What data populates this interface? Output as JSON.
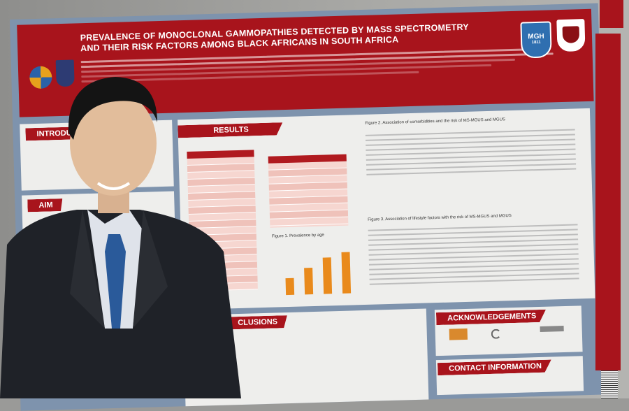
{
  "poster": {
    "title_line1": "PREVALENCE OF MONOCLONAL GAMMOPATHIES DETECTED BY MASS SPECTROMETRY",
    "title_line2": "AND THEIR RISK FACTORS AMONG BLACK AFRICANS IN SOUTH AFRICA",
    "logo_mgh": "MGH",
    "logo_mgh_year": "1811",
    "sections": {
      "introduction": "INTRODU",
      "aim": "AIM",
      "results": "RESULTS",
      "conclusions": "CLUSIONS",
      "acknowledgements": "ACKNOWLEDGEMENTS",
      "contact": "CONTACT INFORMATION"
    },
    "figure2_title": "Figure 2. Association of comorbidities and the risk of MS-MGUS and MGUS",
    "figure3_title": "Figure 3. Association of lifestyle factors with the risk of MS-MGUS and MGUS",
    "figure1_title": "Figure 1. Prevalence by age",
    "figure1_levels": [
      0.35,
      0.55,
      0.75,
      0.85
    ],
    "banner_color": "#a8141c",
    "bar_color": "#e98a1c"
  },
  "scene": {
    "subject": "man in dark suit with blue tie standing in front of poster"
  }
}
